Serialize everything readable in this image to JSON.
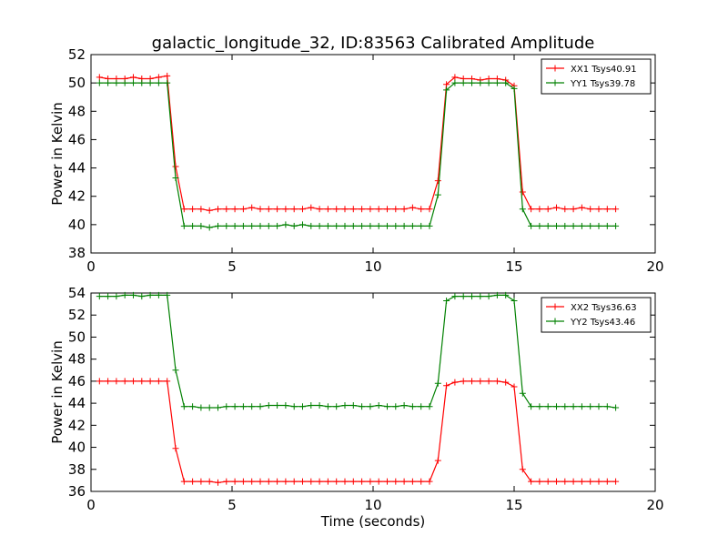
{
  "chart_data": [
    {
      "type": "line",
      "title": "galactic_longitude_32, ID:83563 Calibrated Amplitude",
      "xlabel": "",
      "ylabel": "Power in Kelvin",
      "xlim": [
        0,
        20
      ],
      "ylim": [
        38,
        52
      ],
      "xticks": [
        "0",
        "5",
        "10",
        "15",
        "20"
      ],
      "yticks": [
        "38",
        "40",
        "42",
        "44",
        "46",
        "48",
        "50",
        "52"
      ],
      "grid": false,
      "legend_position": "top-right",
      "x": [
        0.3,
        0.6,
        0.9,
        1.2,
        1.5,
        1.8,
        2.1,
        2.4,
        2.7,
        3.0,
        3.3,
        3.6,
        3.9,
        4.2,
        4.5,
        4.8,
        5.1,
        5.4,
        5.7,
        6.0,
        6.3,
        6.6,
        6.9,
        7.2,
        7.5,
        7.8,
        8.1,
        8.4,
        8.7,
        9.0,
        9.3,
        9.6,
        9.9,
        10.2,
        10.5,
        10.8,
        11.1,
        11.4,
        11.7,
        12.0,
        12.3,
        12.6,
        12.9,
        13.2,
        13.5,
        13.8,
        14.1,
        14.4,
        14.7,
        15.0,
        15.3,
        15.6,
        15.9,
        16.2,
        16.5,
        16.8,
        17.1,
        17.4,
        17.7,
        18.0,
        18.3,
        18.6
      ],
      "series": [
        {
          "name": "XX1 Tsys40.91",
          "color": "#ff0000",
          "values": [
            50.4,
            50.3,
            50.3,
            50.3,
            50.4,
            50.3,
            50.3,
            50.4,
            50.5,
            44.1,
            41.1,
            41.1,
            41.1,
            41.0,
            41.1,
            41.1,
            41.1,
            41.1,
            41.2,
            41.1,
            41.1,
            41.1,
            41.1,
            41.1,
            41.1,
            41.2,
            41.1,
            41.1,
            41.1,
            41.1,
            41.1,
            41.1,
            41.1,
            41.1,
            41.1,
            41.1,
            41.1,
            41.2,
            41.1,
            41.1,
            43.1,
            49.9,
            50.4,
            50.3,
            50.3,
            50.2,
            50.3,
            50.3,
            50.2,
            49.8,
            42.3,
            41.1,
            41.1,
            41.1,
            41.2,
            41.1,
            41.1,
            41.2,
            41.1,
            41.1,
            41.1,
            41.1
          ]
        },
        {
          "name": "YY1 Tsys39.78",
          "color": "#008000",
          "values": [
            50.0,
            50.0,
            50.0,
            50.0,
            50.0,
            50.0,
            50.0,
            50.0,
            50.0,
            43.3,
            39.9,
            39.9,
            39.9,
            39.8,
            39.9,
            39.9,
            39.9,
            39.9,
            39.9,
            39.9,
            39.9,
            39.9,
            40.0,
            39.9,
            40.0,
            39.9,
            39.9,
            39.9,
            39.9,
            39.9,
            39.9,
            39.9,
            39.9,
            39.9,
            39.9,
            39.9,
            39.9,
            39.9,
            39.9,
            39.9,
            42.1,
            49.5,
            50.0,
            50.0,
            50.0,
            50.0,
            50.0,
            50.0,
            50.0,
            49.6,
            41.1,
            39.9,
            39.9,
            39.9,
            39.9,
            39.9,
            39.9,
            39.9,
            39.9,
            39.9,
            39.9,
            39.9
          ]
        }
      ]
    },
    {
      "type": "line",
      "title": "",
      "xlabel": "Time (seconds)",
      "ylabel": "Power in Kelvin",
      "xlim": [
        0,
        20
      ],
      "ylim": [
        36,
        54
      ],
      "xticks": [
        "0",
        "5",
        "10",
        "15",
        "20"
      ],
      "yticks": [
        "36",
        "38",
        "40",
        "42",
        "44",
        "46",
        "48",
        "50",
        "52",
        "54"
      ],
      "grid": false,
      "legend_position": "top-right",
      "x": [
        0.3,
        0.6,
        0.9,
        1.2,
        1.5,
        1.8,
        2.1,
        2.4,
        2.7,
        3.0,
        3.3,
        3.6,
        3.9,
        4.2,
        4.5,
        4.8,
        5.1,
        5.4,
        5.7,
        6.0,
        6.3,
        6.6,
        6.9,
        7.2,
        7.5,
        7.8,
        8.1,
        8.4,
        8.7,
        9.0,
        9.3,
        9.6,
        9.9,
        10.2,
        10.5,
        10.8,
        11.1,
        11.4,
        11.7,
        12.0,
        12.3,
        12.6,
        12.9,
        13.2,
        13.5,
        13.8,
        14.1,
        14.4,
        14.7,
        15.0,
        15.3,
        15.6,
        15.9,
        16.2,
        16.5,
        16.8,
        17.1,
        17.4,
        17.7,
        18.0,
        18.3,
        18.6
      ],
      "series": [
        {
          "name": "XX2 Tsys36.63",
          "color": "#ff0000",
          "values": [
            46.0,
            46.0,
            46.0,
            46.0,
            46.0,
            46.0,
            46.0,
            46.0,
            46.0,
            39.9,
            36.9,
            36.9,
            36.9,
            36.9,
            36.8,
            36.9,
            36.9,
            36.9,
            36.9,
            36.9,
            36.9,
            36.9,
            36.9,
            36.9,
            36.9,
            36.9,
            36.9,
            36.9,
            36.9,
            36.9,
            36.9,
            36.9,
            36.9,
            36.9,
            36.9,
            36.9,
            36.9,
            36.9,
            36.9,
            36.9,
            38.8,
            45.6,
            45.9,
            46.0,
            46.0,
            46.0,
            46.0,
            46.0,
            45.9,
            45.5,
            38.0,
            36.9,
            36.9,
            36.9,
            36.9,
            36.9,
            36.9,
            36.9,
            36.9,
            36.9,
            36.9,
            36.9
          ]
        },
        {
          "name": "YY2 Tsys43.46",
          "color": "#008000",
          "values": [
            53.7,
            53.7,
            53.7,
            53.8,
            53.8,
            53.7,
            53.8,
            53.8,
            53.8,
            47.0,
            43.7,
            43.7,
            43.6,
            43.6,
            43.6,
            43.7,
            43.7,
            43.7,
            43.7,
            43.7,
            43.8,
            43.8,
            43.8,
            43.7,
            43.7,
            43.8,
            43.8,
            43.7,
            43.7,
            43.8,
            43.8,
            43.7,
            43.7,
            43.8,
            43.7,
            43.7,
            43.8,
            43.7,
            43.7,
            43.7,
            45.8,
            53.3,
            53.7,
            53.7,
            53.7,
            53.7,
            53.7,
            53.8,
            53.8,
            53.3,
            44.9,
            43.7,
            43.7,
            43.7,
            43.7,
            43.7,
            43.7,
            43.7,
            43.7,
            43.7,
            43.7,
            43.6
          ]
        }
      ]
    }
  ]
}
